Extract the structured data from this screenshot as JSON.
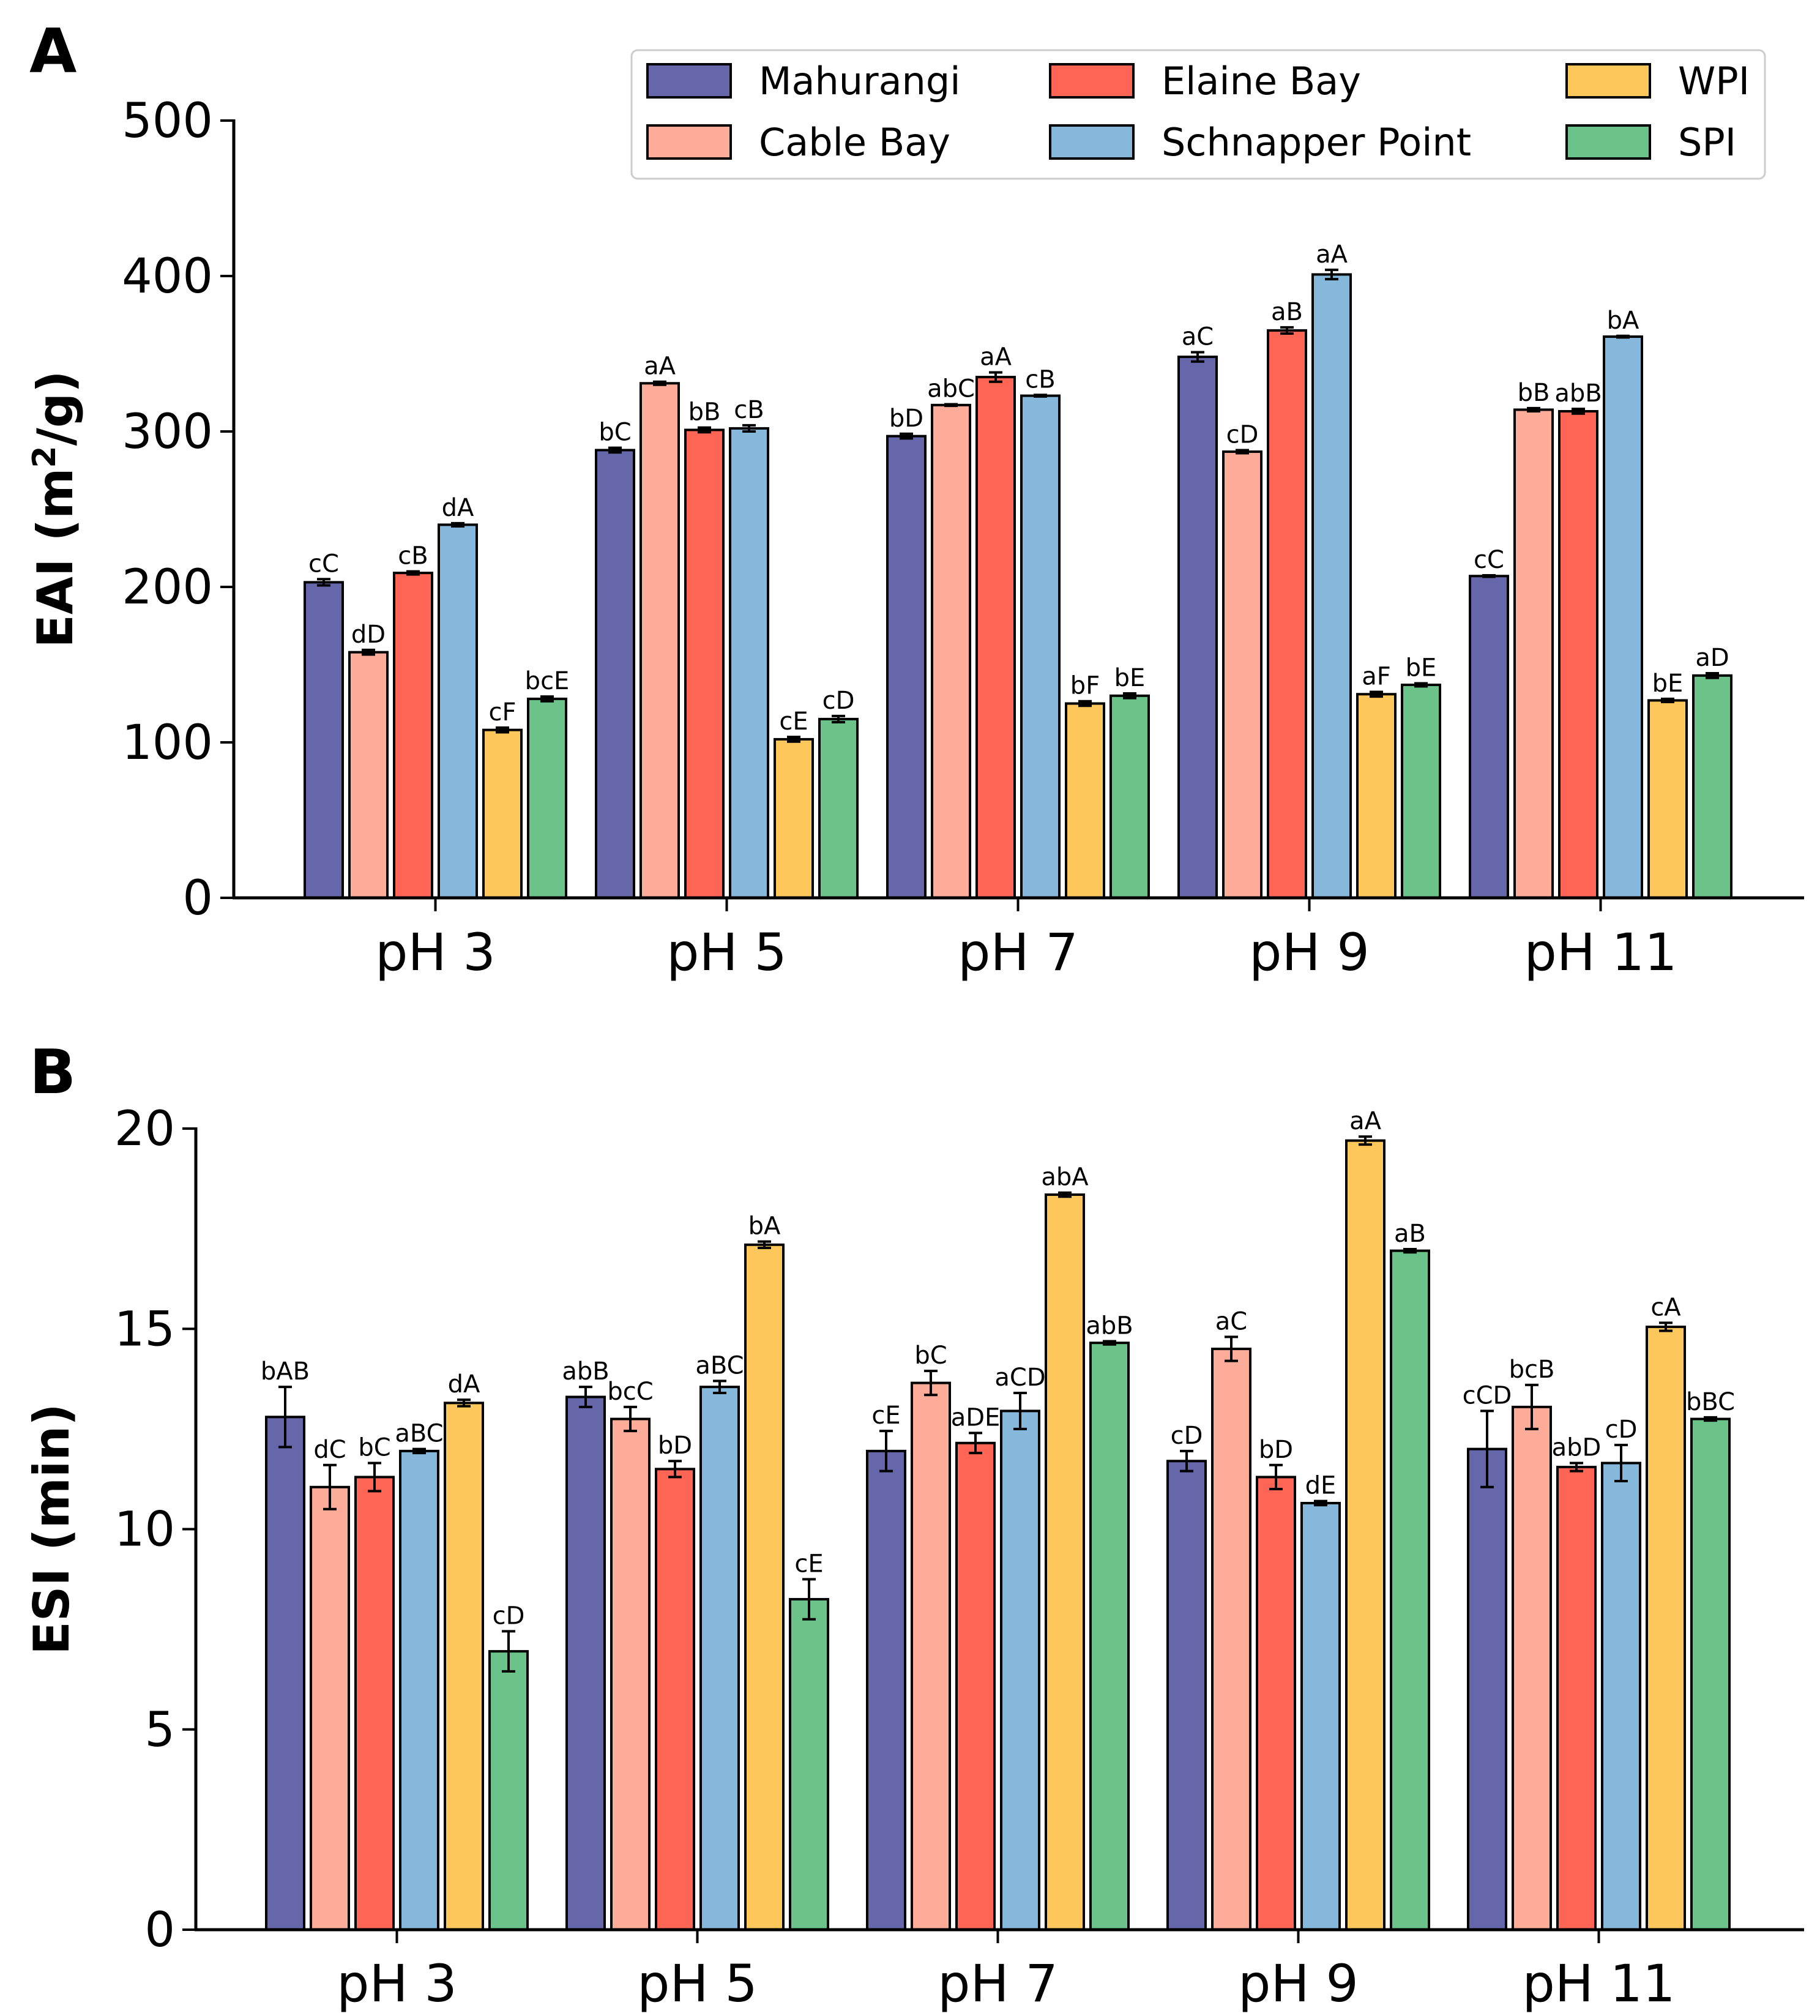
{
  "chart_data": [
    {
      "type": "bar",
      "panel_label": "A",
      "ylabel_parts": [
        "EAI (m",
        "2",
        "/g)"
      ],
      "ylim": [
        0,
        500
      ],
      "yticks": [
        "0",
        "100",
        "200",
        "300",
        "400",
        "500"
      ],
      "ytick_values": [
        0,
        100,
        200,
        300,
        400,
        500
      ],
      "categories": [
        "pH 3",
        "pH 5",
        "pH 7",
        "pH 9",
        "pH 11"
      ],
      "grid": false,
      "legend_position": "top-right",
      "series": [
        {
          "name": "Mahurangi",
          "color": "#6667ab",
          "values": [
            203,
            288,
            297,
            348,
            207
          ],
          "errors": [
            2,
            1.5,
            1.5,
            3,
            0.5
          ],
          "labels": [
            "cC",
            "bC",
            "bD",
            "aC",
            "cC"
          ]
        },
        {
          "name": "Cable Bay",
          "color": "#fdac9a",
          "values": [
            158,
            331,
            317,
            287,
            314
          ],
          "errors": [
            1.5,
            1,
            0.5,
            1,
            1
          ],
          "labels": [
            "dD",
            "aA",
            "abC",
            "cD",
            "bB"
          ]
        },
        {
          "name": "Elaine Bay",
          "color": "#fe6555",
          "values": [
            209,
            301,
            335,
            365,
            313
          ],
          "errors": [
            1,
            1.5,
            3,
            2,
            1.5
          ],
          "labels": [
            "cB",
            "bB",
            "aA",
            "aB",
            "abB"
          ]
        },
        {
          "name": "Schnapper Point",
          "color": "#86b8dc",
          "values": [
            240,
            302,
            323,
            401,
            361
          ],
          "errors": [
            1,
            2,
            0.5,
            3,
            0.5
          ],
          "labels": [
            "dA",
            "cB",
            "cB",
            "aA",
            "bA"
          ]
        },
        {
          "name": "WPI",
          "color": "#fdc75c",
          "values": [
            108,
            102,
            125,
            131,
            127
          ],
          "errors": [
            1.5,
            1.5,
            1.5,
            1.5,
            1
          ],
          "labels": [
            "cF",
            "cE",
            "bF",
            "aF",
            "bE"
          ]
        },
        {
          "name": "SPI",
          "color": "#6cc389",
          "values": [
            128,
            115,
            130,
            137,
            143
          ],
          "errors": [
            1.5,
            2,
            1.5,
            1,
            1.5
          ],
          "labels": [
            "bcE",
            "cD",
            "bE",
            "bE",
            "aD"
          ]
        }
      ]
    },
    {
      "type": "bar",
      "panel_label": "B",
      "ylabel_parts": [
        "ESI (min)"
      ],
      "ylim": [
        0,
        20
      ],
      "yticks": [
        "0",
        "5",
        "10",
        "15",
        "20"
      ],
      "ytick_values": [
        0,
        5,
        10,
        15,
        20
      ],
      "categories": [
        "pH 3",
        "pH 5",
        "pH 7",
        "pH 9",
        "pH 11"
      ],
      "grid": false,
      "series": [
        {
          "name": "Mahurangi",
          "color": "#6667ab",
          "values": [
            12.8,
            13.3,
            11.95,
            11.7,
            12.0
          ],
          "errors": [
            0.75,
            0.25,
            0.5,
            0.25,
            0.95
          ],
          "labels": [
            "bAB",
            "abB",
            "cE",
            "cD",
            "cCD"
          ]
        },
        {
          "name": "Cable Bay",
          "color": "#fdac9a",
          "values": [
            11.05,
            12.75,
            13.65,
            14.5,
            13.05
          ],
          "errors": [
            0.55,
            0.3,
            0.3,
            0.3,
            0.55
          ],
          "labels": [
            "dC",
            "bcC",
            "bC",
            "aC",
            "bcB"
          ]
        },
        {
          "name": "Elaine Bay",
          "color": "#fe6555",
          "values": [
            11.3,
            11.5,
            12.15,
            11.3,
            11.55
          ],
          "errors": [
            0.35,
            0.2,
            0.25,
            0.3,
            0.1
          ],
          "labels": [
            "bC",
            "bD",
            "aDE",
            "bD",
            "abD"
          ]
        },
        {
          "name": "Schnapper Point",
          "color": "#86b8dc",
          "values": [
            11.95,
            13.55,
            12.95,
            10.65,
            11.65
          ],
          "errors": [
            0.05,
            0.15,
            0.45,
            0.05,
            0.45
          ],
          "labels": [
            "aBC",
            "aBC",
            "aCD",
            "dE",
            "cD"
          ]
        },
        {
          "name": "WPI",
          "color": "#fdc75c",
          "values": [
            13.15,
            17.1,
            18.35,
            19.7,
            15.05
          ],
          "errors": [
            0.08,
            0.08,
            0.05,
            0.1,
            0.1
          ],
          "labels": [
            "dA",
            "bA",
            "abA",
            "aA",
            "cA"
          ]
        },
        {
          "name": "SPI",
          "color": "#6cc389",
          "values": [
            6.95,
            8.25,
            14.65,
            16.95,
            12.75
          ],
          "errors": [
            0.5,
            0.5,
            0.04,
            0.04,
            0.04
          ],
          "labels": [
            "cD",
            "cE",
            "abB",
            "aB",
            "bBC"
          ]
        }
      ]
    }
  ]
}
